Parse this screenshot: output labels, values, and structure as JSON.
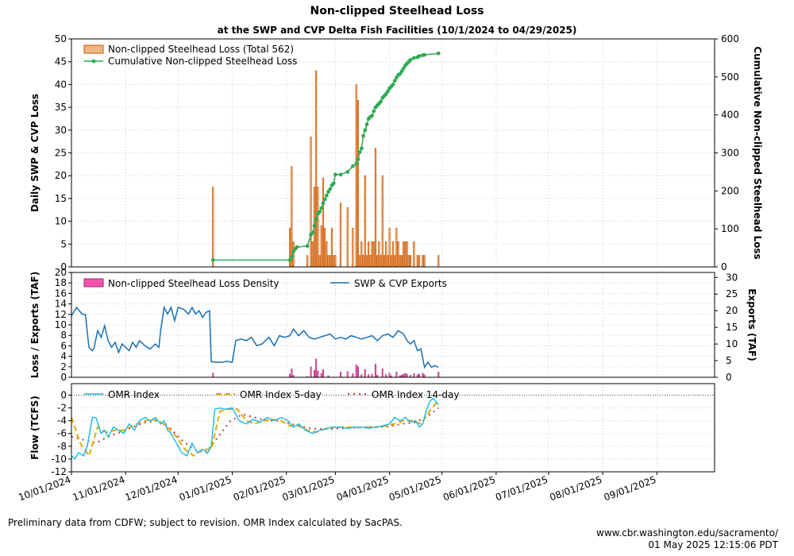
{
  "title": "Non-clipped Steelhead Loss",
  "subtitle": "at the SWP and CVP Delta Fish Facilities (10/1/2024 to 04/29/2025)",
  "footer": {
    "note": "Preliminary data from CDFW; subject to revision. OMR Index calculated by SacPAS.",
    "url": "www.cbr.washington.edu/sacramento/",
    "timestamp": "01 May 2025 12:15:06 PDT"
  },
  "colors": {
    "loss_bar_edge": "#cc5500",
    "loss_bar_fill": "#f2a64a",
    "cumulative": "#2eaa55",
    "density": "#ee55aa",
    "exports": "#1a6fb5",
    "omr": "#22bbee",
    "omr5": "#e6a800",
    "omr14": "#c04040",
    "grid": "#c8c8c8"
  },
  "chart_data": [
    {
      "id": "loss",
      "type": "bar",
      "xlabel": "",
      "ylabel": "Daily SWP & CVP Loss",
      "y2label": "Cumulative Non-clipped Steelhead Loss",
      "ylim": [
        0,
        50
      ],
      "y2lim": [
        0,
        600
      ],
      "yticks": [
        "0",
        "5",
        "10",
        "15",
        "20",
        "25",
        "30",
        "35",
        "40",
        "45",
        "50"
      ],
      "y2ticks": [
        "0",
        "100",
        "200",
        "300",
        "400",
        "500",
        "600"
      ],
      "legend": [
        "Non-clipped Steelhead Loss (Total 562)",
        "Cumulative Non-clipped Steelhead Loss"
      ],
      "legend_position": "top-left",
      "grid": true,
      "x_dates": [
        "2024-12-21",
        "2025-02-03",
        "2025-02-04",
        "2025-02-05",
        "2025-02-13",
        "2025-02-15",
        "2025-02-16",
        "2025-02-17",
        "2025-02-18",
        "2025-02-19",
        "2025-02-20",
        "2025-02-21",
        "2025-02-22",
        "2025-02-23",
        "2025-02-24",
        "2025-02-25",
        "2025-02-26",
        "2025-02-27",
        "2025-02-28",
        "2025-03-01",
        "2025-03-04",
        "2025-03-08",
        "2025-03-11",
        "2025-03-13",
        "2025-03-14",
        "2025-03-15",
        "2025-03-16",
        "2025-03-17",
        "2025-03-18",
        "2025-03-19",
        "2025-03-20",
        "2025-03-21",
        "2025-03-22",
        "2025-03-23",
        "2025-03-24",
        "2025-03-25",
        "2025-03-26",
        "2025-03-27",
        "2025-03-28",
        "2025-03-29",
        "2025-03-30",
        "2025-03-31",
        "2025-04-01",
        "2025-04-02",
        "2025-04-03",
        "2025-04-04",
        "2025-04-05",
        "2025-04-06",
        "2025-04-07",
        "2025-04-08",
        "2025-04-09",
        "2025-04-10",
        "2025-04-11",
        "2025-04-12",
        "2025-04-13",
        "2025-04-15",
        "2025-04-17",
        "2025-04-18",
        "2025-04-20",
        "2025-04-21",
        "2025-04-29"
      ],
      "daily_loss": [
        17.5,
        8.5,
        22,
        5.5,
        2.5,
        28.5,
        5.5,
        17.5,
        43,
        17.5,
        2.5,
        9,
        19.5,
        8.5,
        5.5,
        2.5,
        2.5,
        8.5,
        2.5,
        2.5,
        14,
        13,
        8.5,
        40,
        36.5,
        2.5,
        5.5,
        2.5,
        20,
        2.5,
        5.5,
        2.5,
        5.5,
        5.5,
        26,
        2.5,
        5.5,
        2.5,
        20,
        2.5,
        5.5,
        2.5,
        8.5,
        2.5,
        5.5,
        2.5,
        8.5,
        5.5,
        2.5,
        2.5,
        5.5,
        5.5,
        5.5,
        2.5,
        2.5,
        5.5,
        2.5,
        2.5,
        2.5,
        2.5,
        2.5
      ],
      "cumulative_dates": [
        "2024-12-21",
        "2025-02-03",
        "2025-02-04",
        "2025-02-05",
        "2025-02-06",
        "2025-02-07",
        "2025-02-13",
        "2025-02-15",
        "2025-02-16",
        "2025-02-17",
        "2025-02-18",
        "2025-02-19",
        "2025-02-20",
        "2025-02-21",
        "2025-02-22",
        "2025-02-23",
        "2025-02-24",
        "2025-02-25",
        "2025-02-26",
        "2025-02-27",
        "2025-02-28",
        "2025-03-01",
        "2025-03-04",
        "2025-03-08",
        "2025-03-11",
        "2025-03-13",
        "2025-03-14",
        "2025-03-15",
        "2025-03-16",
        "2025-03-17",
        "2025-03-18",
        "2025-03-19",
        "2025-03-20",
        "2025-03-21",
        "2025-03-22",
        "2025-03-23",
        "2025-03-24",
        "2025-03-25",
        "2025-03-26",
        "2025-03-27",
        "2025-03-28",
        "2025-03-29",
        "2025-03-30",
        "2025-03-31",
        "2025-04-01",
        "2025-04-02",
        "2025-04-03",
        "2025-04-04",
        "2025-04-05",
        "2025-04-06",
        "2025-04-07",
        "2025-04-08",
        "2025-04-09",
        "2025-04-10",
        "2025-04-11",
        "2025-04-12",
        "2025-04-13",
        "2025-04-15",
        "2025-04-17",
        "2025-04-18",
        "2025-04-20",
        "2025-04-21",
        "2025-04-29"
      ],
      "cumulative": [
        18,
        18,
        27,
        40,
        47,
        52,
        55,
        85,
        90,
        108,
        126,
        140,
        145,
        155,
        167,
        178,
        188,
        198,
        205,
        215,
        220,
        243,
        243,
        250,
        265,
        272,
        283,
        302,
        312,
        345,
        360,
        375,
        390,
        395,
        398,
        410,
        420,
        425,
        430,
        435,
        445,
        450,
        455,
        462,
        470,
        475,
        480,
        490,
        498,
        505,
        508,
        515,
        522,
        530,
        535,
        540,
        545,
        550,
        552,
        555,
        557,
        558,
        562
      ]
    },
    {
      "id": "exports",
      "type": "line",
      "ylabel": "Loss / Exports (TAF)",
      "y2label": "Exports (TAF)",
      "ylim": [
        0,
        20
      ],
      "y2lim": [
        0,
        31.5
      ],
      "yticks": [
        "0",
        "2",
        "4",
        "6",
        "8",
        "10",
        "12",
        "14",
        "16",
        "18",
        "20"
      ],
      "y2ticks": [
        "0",
        "5",
        "10",
        "15",
        "20",
        "25",
        "30"
      ],
      "legend": [
        "Non-clipped Steelhead Loss Density",
        "SWP & CVP Exports"
      ],
      "grid": true,
      "density_dates": [
        "2024-12-21",
        "2025-02-03",
        "2025-02-04",
        "2025-02-05",
        "2025-02-13",
        "2025-02-15",
        "2025-02-17",
        "2025-02-18",
        "2025-02-19",
        "2025-02-21",
        "2025-02-22",
        "2025-02-25",
        "2025-03-04",
        "2025-03-08",
        "2025-03-11",
        "2025-03-13",
        "2025-03-14",
        "2025-03-16",
        "2025-03-18",
        "2025-03-20",
        "2025-03-22",
        "2025-03-24",
        "2025-03-25",
        "2025-03-28",
        "2025-03-30",
        "2025-04-01",
        "2025-04-02",
        "2025-04-05",
        "2025-04-07",
        "2025-04-08",
        "2025-04-09",
        "2025-04-10",
        "2025-04-11",
        "2025-04-13",
        "2025-04-15",
        "2025-04-17",
        "2025-04-18",
        "2025-04-20",
        "2025-04-21",
        "2025-04-29"
      ],
      "density": [
        0.8,
        0.6,
        1.6,
        0.4,
        0.2,
        2.0,
        1.3,
        3.5,
        1.2,
        0.7,
        1.5,
        0.3,
        1.0,
        1.1,
        0.7,
        2.4,
        2.0,
        0.5,
        1.5,
        0.5,
        0.6,
        2.5,
        0.4,
        1.6,
        0.5,
        0.8,
        0.3,
        1.0,
        0.3,
        0.4,
        0.6,
        0.7,
        0.6,
        0.4,
        0.7,
        0.5,
        0.6,
        0.8,
        0.5,
        1.0
      ],
      "exports_dates": [
        "2024-10-01",
        "2024-10-04",
        "2024-10-07",
        "2024-10-09",
        "2024-10-11",
        "2024-10-13",
        "2024-10-14",
        "2024-10-16",
        "2024-10-18",
        "2024-10-20",
        "2024-10-22",
        "2024-10-24",
        "2024-10-26",
        "2024-10-28",
        "2024-10-30",
        "2024-11-01",
        "2024-11-03",
        "2024-11-05",
        "2024-11-07",
        "2024-11-09",
        "2024-11-12",
        "2024-11-15",
        "2024-11-18",
        "2024-11-20",
        "2024-11-21",
        "2024-11-23",
        "2024-11-25",
        "2024-11-27",
        "2024-11-29",
        "2024-12-01",
        "2024-12-04",
        "2024-12-07",
        "2024-12-09",
        "2024-12-11",
        "2024-12-13",
        "2024-12-15",
        "2024-12-17",
        "2024-12-19",
        "2024-12-20",
        "2024-12-23",
        "2024-12-26",
        "2024-12-29",
        "2025-01-01",
        "2025-01-03",
        "2025-01-06",
        "2025-01-09",
        "2025-01-12",
        "2025-01-15",
        "2025-01-18",
        "2025-01-22",
        "2025-01-25",
        "2025-01-28",
        "2025-01-31",
        "2025-02-03",
        "2025-02-05",
        "2025-02-08",
        "2025-02-11",
        "2025-02-14",
        "2025-02-17",
        "2025-02-20",
        "2025-02-23",
        "2025-02-26",
        "2025-03-01",
        "2025-03-04",
        "2025-03-07",
        "2025-03-10",
        "2025-03-13",
        "2025-03-16",
        "2025-03-19",
        "2025-03-22",
        "2025-03-25",
        "2025-03-28",
        "2025-03-31",
        "2025-04-03",
        "2025-04-06",
        "2025-04-09",
        "2025-04-11",
        "2025-04-13",
        "2025-04-15",
        "2025-04-17",
        "2025-04-19",
        "2025-04-21",
        "2025-04-23",
        "2025-04-25",
        "2025-04-27",
        "2025-04-29"
      ],
      "exports": [
        18.5,
        21.0,
        19.0,
        18.8,
        9.0,
        8.0,
        9.0,
        14.0,
        12.0,
        15.5,
        11.0,
        9.0,
        10.5,
        7.5,
        10.0,
        9.0,
        8.0,
        10.5,
        9.0,
        11.0,
        9.5,
        8.5,
        10.0,
        9.0,
        14.0,
        21.0,
        19.0,
        21.0,
        17.0,
        21.0,
        20.5,
        19.0,
        21.0,
        19.0,
        20.0,
        18.0,
        19.5,
        20.0,
        4.7,
        4.5,
        4.5,
        4.8,
        4.5,
        11.0,
        11.5,
        11.0,
        12.0,
        9.5,
        10.0,
        12.0,
        9.5,
        12.5,
        12.0,
        12.5,
        14.5,
        12.5,
        14.0,
        12.0,
        11.5,
        12.0,
        12.5,
        13.0,
        11.5,
        12.0,
        11.5,
        12.5,
        12.0,
        11.5,
        12.0,
        12.5,
        11.0,
        12.5,
        13.0,
        12.0,
        14.0,
        13.0,
        11.0,
        10.0,
        11.0,
        8.0,
        8.5,
        3.0,
        4.5,
        3.0,
        3.5,
        3.0
      ]
    },
    {
      "id": "omr",
      "type": "line",
      "ylabel": "Flow (TCFS)",
      "ylim": [
        -12,
        1.8
      ],
      "yticks": [
        "-12",
        "-10",
        "-8",
        "-6",
        "-4",
        "-2",
        "0"
      ],
      "legend": [
        "OMR Index",
        "OMR Index 5-day",
        "OMR Index 14-day"
      ],
      "grid": true,
      "xticks": [
        "10/01/2024",
        "11/01/2024",
        "12/01/2024",
        "01/01/2025",
        "02/01/2025",
        "03/01/2025",
        "04/01/2025",
        "05/01/2025",
        "06/01/2025",
        "07/01/2025",
        "08/01/2025",
        "09/01/2025"
      ],
      "xlim": [
        "2024-10-01",
        "2025-10-04"
      ],
      "omr_dates": [
        "2024-10-01",
        "2024-10-03",
        "2024-10-05",
        "2024-10-08",
        "2024-10-10",
        "2024-10-13",
        "2024-10-15",
        "2024-10-18",
        "2024-10-20",
        "2024-10-22",
        "2024-10-25",
        "2024-10-28",
        "2024-10-31",
        "2024-11-03",
        "2024-11-06",
        "2024-11-09",
        "2024-11-12",
        "2024-11-15",
        "2024-11-18",
        "2024-11-21",
        "2024-11-23",
        "2024-11-25",
        "2024-11-27",
        "2024-11-30",
        "2024-12-03",
        "2024-12-06",
        "2024-12-09",
        "2024-12-12",
        "2024-12-15",
        "2024-12-18",
        "2024-12-20",
        "2024-12-22",
        "2024-12-25",
        "2024-12-28",
        "2025-01-01",
        "2025-01-05",
        "2025-01-09",
        "2025-01-13",
        "2025-01-17",
        "2025-01-21",
        "2025-01-25",
        "2025-01-29",
        "2025-02-02",
        "2025-02-05",
        "2025-02-08",
        "2025-02-12",
        "2025-02-16",
        "2025-02-20",
        "2025-02-24",
        "2025-02-28",
        "2025-03-04",
        "2025-03-08",
        "2025-03-12",
        "2025-03-16",
        "2025-03-20",
        "2025-03-24",
        "2025-03-28",
        "2025-04-01",
        "2025-04-04",
        "2025-04-07",
        "2025-04-10",
        "2025-04-13",
        "2025-04-16",
        "2025-04-18",
        "2025-04-20",
        "2025-04-22",
        "2025-04-24",
        "2025-04-26",
        "2025-04-29"
      ],
      "omr": [
        -9.5,
        -10.0,
        -9.0,
        -9.5,
        -8.0,
        -3.5,
        -3.5,
        -6.0,
        -5.5,
        -6.5,
        -5.0,
        -5.5,
        -6.0,
        -4.5,
        -5.5,
        -4.0,
        -3.5,
        -4.0,
        -3.5,
        -4.5,
        -4.0,
        -5.5,
        -6.0,
        -7.5,
        -9.0,
        -9.5,
        -7.5,
        -9.0,
        -8.5,
        -9.0,
        -8.0,
        -2.2,
        -2.0,
        -2.2,
        -2.0,
        -4.0,
        -4.5,
        -3.8,
        -4.2,
        -3.5,
        -4.0,
        -3.5,
        -4.0,
        -5.0,
        -4.5,
        -5.5,
        -6.0,
        -5.5,
        -5.2,
        -5.0,
        -5.0,
        -5.2,
        -5.0,
        -5.0,
        -5.2,
        -5.0,
        -4.8,
        -4.5,
        -3.5,
        -4.0,
        -3.5,
        -4.2,
        -4.0,
        -5.0,
        -4.5,
        -2.5,
        -1.0,
        -0.5,
        -1.5
      ],
      "omr5_dates": [
        "2024-10-01",
        "2024-10-06",
        "2024-10-11",
        "2024-10-16",
        "2024-10-21",
        "2024-10-26",
        "2024-10-31",
        "2024-11-05",
        "2024-11-10",
        "2024-11-15",
        "2024-11-20",
        "2024-11-25",
        "2024-11-30",
        "2024-12-05",
        "2024-12-10",
        "2024-12-15",
        "2024-12-20",
        "2024-12-25",
        "2024-12-30",
        "2025-01-04",
        "2025-01-09",
        "2025-01-14",
        "2025-01-19",
        "2025-01-24",
        "2025-01-29",
        "2025-02-03",
        "2025-02-08",
        "2025-02-13",
        "2025-02-18",
        "2025-02-23",
        "2025-02-28",
        "2025-03-05",
        "2025-03-10",
        "2025-03-15",
        "2025-03-20",
        "2025-03-25",
        "2025-03-30",
        "2025-04-04",
        "2025-04-09",
        "2025-04-14",
        "2025-04-19",
        "2025-04-24",
        "2025-04-29"
      ],
      "omr5": [
        -3.5,
        -7.5,
        -9.5,
        -5.0,
        -5.8,
        -5.5,
        -5.5,
        -4.8,
        -4.2,
        -3.8,
        -4.0,
        -5.0,
        -6.5,
        -8.5,
        -9.5,
        -8.5,
        -8.5,
        -2.5,
        -2.2,
        -2.2,
        -4.0,
        -4.5,
        -4.0,
        -3.8,
        -4.0,
        -4.8,
        -4.8,
        -5.5,
        -5.8,
        -5.3,
        -5.0,
        -5.0,
        -5.0,
        -5.1,
        -5.0,
        -5.0,
        -4.8,
        -4.5,
        -4.0,
        -4.0,
        -4.5,
        -2.5,
        -0.8
      ],
      "omr14_dates": [
        "2024-10-01",
        "2024-10-08",
        "2024-10-15",
        "2024-10-22",
        "2024-10-29",
        "2024-11-05",
        "2024-11-12",
        "2024-11-19",
        "2024-11-26",
        "2024-12-03",
        "2024-12-10",
        "2024-12-17",
        "2024-12-24",
        "2024-12-31",
        "2025-01-07",
        "2025-01-14",
        "2025-01-21",
        "2025-01-28",
        "2025-02-04",
        "2025-02-11",
        "2025-02-18",
        "2025-02-25",
        "2025-03-04",
        "2025-03-11",
        "2025-03-18",
        "2025-03-25",
        "2025-04-01",
        "2025-04-08",
        "2025-04-15",
        "2025-04-22",
        "2025-04-29"
      ],
      "omr14": [
        -6.5,
        -7.0,
        -7.5,
        -6.5,
        -5.8,
        -5.0,
        -4.3,
        -4.0,
        -5.0,
        -7.0,
        -8.5,
        -9.0,
        -6.5,
        -4.0,
        -3.0,
        -3.5,
        -4.0,
        -4.0,
        -4.5,
        -5.0,
        -5.3,
        -5.3,
        -5.2,
        -5.1,
        -5.0,
        -5.0,
        -4.9,
        -4.5,
        -4.3,
        -3.5,
        -2.0
      ]
    }
  ]
}
